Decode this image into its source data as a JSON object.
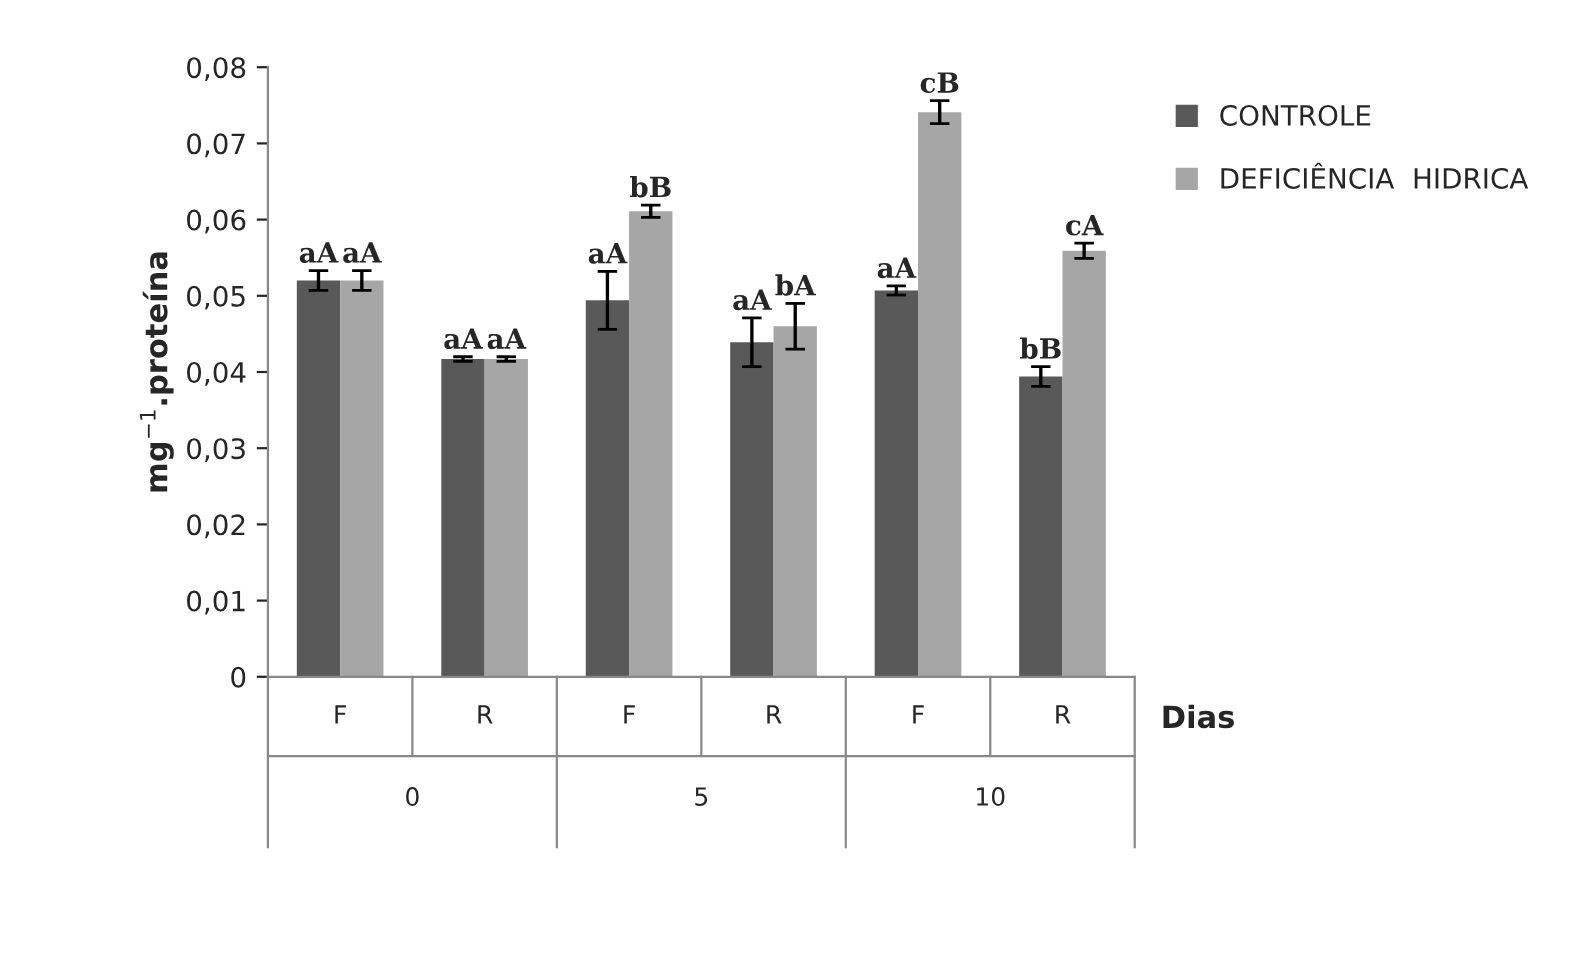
{
  "chart_data": {
    "type": "bar",
    "ylabel": "mg$^{−1}$.proteína",
    "xlabel": "Dias",
    "categories": [
      "F",
      "R",
      "F",
      "R",
      "F",
      "R"
    ],
    "annotations": [
      "0",
      "5",
      "10"
    ],
    "series": [
      {
        "name": "CONTROLE",
        "color": "#595959",
        "values": [
          0.052,
          0.0417,
          0.0494,
          0.0439,
          0.0507,
          0.0394
        ],
        "errors": [
          0.0013,
          0.0003,
          0.0038,
          0.0032,
          0.0006,
          0.0013
        ],
        "value_labels": [
          "aA",
          "aA",
          "aA",
          "aA",
          "aA",
          "bB"
        ]
      },
      {
        "name": "DEFICIÊNCIA  HIDRICA",
        "color": "#a6a6a6",
        "values": [
          0.052,
          0.0417,
          0.0611,
          0.046,
          0.0741,
          0.0559
        ],
        "errors": [
          0.0013,
          0.0003,
          0.0008,
          0.003,
          0.0015,
          0.001
        ],
        "value_labels": [
          "aA",
          "aA",
          "bB",
          "bA",
          "cB",
          "cA"
        ]
      }
    ],
    "ylim": [
      0,
      0.08
    ],
    "yticks": [
      {
        "value": 0,
        "label": "0"
      },
      {
        "value": 0.01,
        "label": "0,01"
      },
      {
        "value": 0.02,
        "label": "0,02"
      },
      {
        "value": 0.03,
        "label": "0,03"
      },
      {
        "value": 0.04,
        "label": "0,04"
      },
      {
        "value": 0.05,
        "label": "0,05"
      },
      {
        "value": 0.06,
        "label": "0,06"
      },
      {
        "value": 0.07,
        "label": "0,07"
      },
      {
        "value": 0.08,
        "label": "0,08"
      }
    ],
    "grid": false,
    "legend": "right"
  }
}
